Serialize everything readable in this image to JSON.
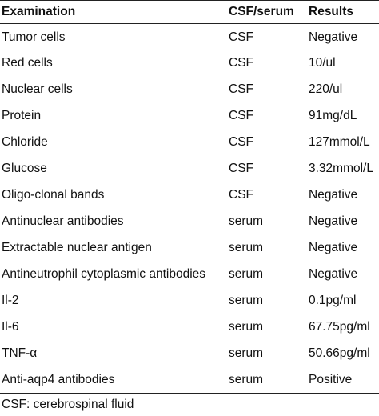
{
  "table": {
    "headers": [
      "Examination",
      "CSF/serum",
      "Results"
    ],
    "rows": [
      [
        "Tumor cells",
        "CSF",
        "Negative"
      ],
      [
        "Red cells",
        "CSF",
        "10/ul"
      ],
      [
        "Nuclear cells",
        "CSF",
        "220/ul"
      ],
      [
        "Protein",
        "CSF",
        "91mg/dL"
      ],
      [
        "Chloride",
        "CSF",
        "127mmol/L"
      ],
      [
        "Glucose",
        "CSF",
        "3.32mmol/L"
      ],
      [
        "Oligo-clonal bands",
        "CSF",
        "Negative"
      ],
      [
        "Antinuclear antibodies",
        "serum",
        "Negative"
      ],
      [
        "Extractable nuclear antigen",
        "serum",
        "Negative"
      ],
      [
        "Antineutrophil cytoplasmic antibodies",
        "serum",
        "Negative"
      ],
      [
        "Il-2",
        "serum",
        "0.1pg/ml"
      ],
      [
        "Il-6",
        "serum",
        "67.75pg/ml"
      ],
      [
        "TNF-α",
        "serum",
        "50.66pg/ml"
      ],
      [
        "Anti-aqp4 antibodies",
        "serum",
        "Positive"
      ]
    ]
  },
  "footnote": "CSF: cerebrospinal fluid"
}
